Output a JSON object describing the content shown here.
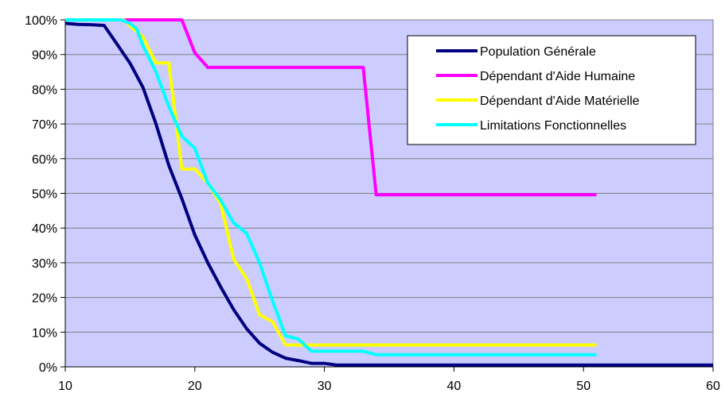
{
  "chart_data": {
    "type": "line",
    "title": "",
    "xlabel": "",
    "ylabel": "",
    "xlim": [
      10,
      60
    ],
    "ylim": [
      0,
      100
    ],
    "xticks": [
      10,
      20,
      30,
      40,
      50,
      60
    ],
    "yticks": [
      0,
      10,
      20,
      30,
      40,
      50,
      60,
      70,
      80,
      90,
      100
    ],
    "ytick_suffix": "%",
    "grid": "horizontal",
    "legend_position": "top-right",
    "plot_background": "#ccccff",
    "series": [
      {
        "name": "Population Générale",
        "color": "#000080",
        "points": [
          [
            10,
            99
          ],
          [
            11,
            98.7
          ],
          [
            12,
            98.6
          ],
          [
            13,
            98.4
          ],
          [
            14,
            93
          ],
          [
            15,
            87.5
          ],
          [
            16,
            80.5
          ],
          [
            17,
            70
          ],
          [
            18,
            58
          ],
          [
            19,
            48.5
          ],
          [
            20,
            38
          ],
          [
            21,
            30
          ],
          [
            22,
            23
          ],
          [
            23,
            16.5
          ],
          [
            24,
            11
          ],
          [
            25,
            6.8
          ],
          [
            26,
            4.2
          ],
          [
            27,
            2.5
          ],
          [
            28,
            1.8
          ],
          [
            29,
            1
          ],
          [
            30,
            1
          ],
          [
            31,
            0.5
          ],
          [
            35,
            0.5
          ],
          [
            40,
            0.5
          ],
          [
            50,
            0.5
          ],
          [
            60,
            0.5
          ]
        ]
      },
      {
        "name": "Dépendant d'Aide Humaine",
        "color": "#ff00ff",
        "points": [
          [
            10,
            100
          ],
          [
            19,
            100
          ],
          [
            20,
            90.5
          ],
          [
            21,
            86.3
          ],
          [
            33,
            86.3
          ],
          [
            34,
            49.6
          ],
          [
            51,
            49.6
          ]
        ]
      },
      {
        "name": "Dépendant d'Aide Matérielle",
        "color": "#ffff00",
        "points": [
          [
            10,
            100
          ],
          [
            14.5,
            100
          ],
          [
            16,
            95
          ],
          [
            17,
            87.6
          ],
          [
            18,
            87.6
          ],
          [
            19,
            57
          ],
          [
            20,
            57
          ],
          [
            21,
            53
          ],
          [
            22,
            47
          ],
          [
            23,
            31
          ],
          [
            24,
            25.5
          ],
          [
            25,
            15
          ],
          [
            26,
            13
          ],
          [
            27,
            6.3
          ],
          [
            51,
            6.3
          ]
        ]
      },
      {
        "name": "Limitations Fonctionnelles",
        "color": "#00ffff",
        "points": [
          [
            10,
            100
          ],
          [
            14.3,
            100
          ],
          [
            15,
            99
          ],
          [
            15.5,
            97.5
          ],
          [
            16,
            92.5
          ],
          [
            17,
            85
          ],
          [
            18,
            75
          ],
          [
            19,
            66.5
          ],
          [
            20,
            63
          ],
          [
            21,
            53
          ],
          [
            22,
            48
          ],
          [
            23,
            41.5
          ],
          [
            24,
            38.5
          ],
          [
            25,
            30
          ],
          [
            26,
            19
          ],
          [
            27,
            9
          ],
          [
            28,
            8
          ],
          [
            29,
            4.5
          ],
          [
            33,
            4.5
          ],
          [
            34,
            3.5
          ],
          [
            51,
            3.5
          ]
        ]
      }
    ]
  }
}
